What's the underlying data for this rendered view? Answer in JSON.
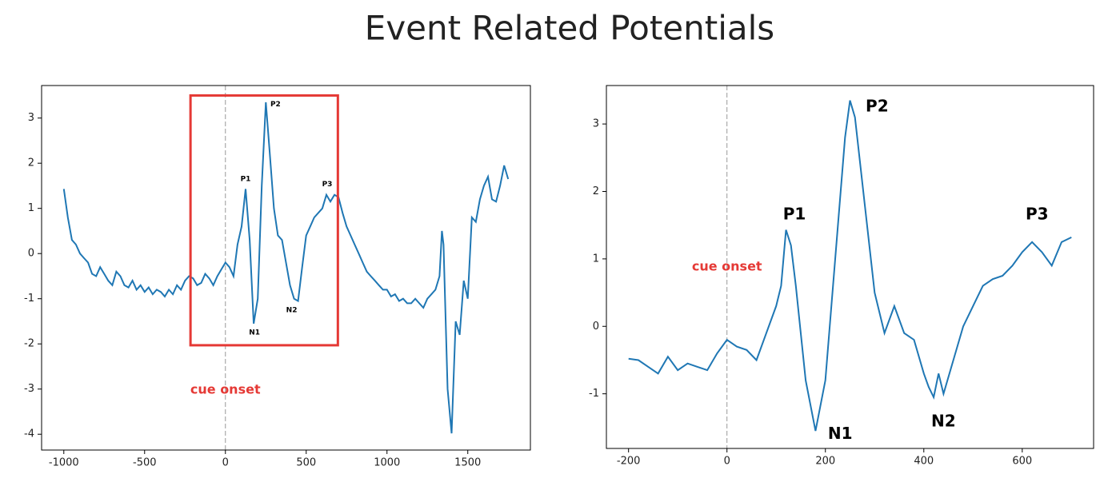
{
  "title": "Event Related Potentials",
  "chart_data": [
    {
      "type": "line",
      "color": "#1f77b4",
      "x": [
        -1000,
        -975,
        -950,
        -925,
        -900,
        -875,
        -850,
        -825,
        -800,
        -775,
        -750,
        -725,
        -700,
        -675,
        -650,
        -625,
        -600,
        -575,
        -550,
        -525,
        -500,
        -475,
        -450,
        -425,
        -400,
        -375,
        -350,
        -325,
        -300,
        -275,
        -250,
        -225,
        -200,
        -175,
        -150,
        -125,
        -100,
        -75,
        -50,
        -25,
        0,
        25,
        50,
        75,
        100,
        125,
        150,
        175,
        200,
        225,
        250,
        275,
        300,
        325,
        350,
        375,
        400,
        425,
        450,
        475,
        500,
        525,
        550,
        575,
        600,
        625,
        650,
        675,
        700,
        725,
        750,
        775,
        800,
        825,
        850,
        875,
        900,
        925,
        950,
        975,
        1000,
        1025,
        1050,
        1075,
        1100,
        1125,
        1150,
        1175,
        1200,
        1225,
        1250,
        1275,
        1300,
        1325,
        1340,
        1350,
        1375,
        1400,
        1425,
        1450,
        1475,
        1500,
        1525,
        1550,
        1575,
        1600,
        1625,
        1650,
        1675,
        1700,
        1725,
        1750
      ],
      "values": [
        1.43,
        0.8,
        0.3,
        0.2,
        0.0,
        -0.1,
        -0.2,
        -0.45,
        -0.5,
        -0.3,
        -0.45,
        -0.6,
        -0.7,
        -0.4,
        -0.5,
        -0.7,
        -0.75,
        -0.6,
        -0.8,
        -0.7,
        -0.85,
        -0.75,
        -0.9,
        -0.8,
        -0.85,
        -0.95,
        -0.8,
        -0.9,
        -0.7,
        -0.8,
        -0.6,
        -0.5,
        -0.55,
        -0.7,
        -0.65,
        -0.45,
        -0.55,
        -0.7,
        -0.5,
        -0.35,
        -0.2,
        -0.3,
        -0.5,
        0.2,
        0.6,
        1.43,
        0.3,
        -1.55,
        -1.0,
        1.5,
        3.35,
        2.2,
        1.0,
        0.4,
        0.3,
        -0.2,
        -0.7,
        -1.0,
        -1.05,
        -0.3,
        0.4,
        0.6,
        0.8,
        0.9,
        1.0,
        1.3,
        1.15,
        1.3,
        1.25,
        0.9,
        0.6,
        0.4,
        0.2,
        0.0,
        -0.2,
        -0.4,
        -0.5,
        -0.6,
        -0.7,
        -0.8,
        -0.8,
        -0.95,
        -0.9,
        -1.05,
        -1.0,
        -1.1,
        -1.1,
        -1.0,
        -1.1,
        -1.2,
        -1.0,
        -0.9,
        -0.8,
        -0.5,
        0.5,
        0.2,
        -3.0,
        -3.98,
        -1.5,
        -1.8,
        -0.6,
        -1.0,
        0.8,
        0.7,
        1.2,
        1.5,
        1.7,
        1.2,
        1.15,
        1.5,
        1.95,
        1.65
      ],
      "xlim": [
        -1137.5,
        1887.5
      ],
      "ylim": [
        -4.35,
        3.72
      ],
      "xticks": [
        -1000,
        -500,
        0,
        500,
        1000,
        1500
      ],
      "yticks": [
        -4,
        -3,
        -2,
        -1,
        0,
        1,
        2,
        3
      ],
      "vline": 0,
      "highlight": {
        "xlim": [
          -216,
          696
        ],
        "ylim": [
          -2.03,
          3.5
        ],
        "color": "#e53935"
      },
      "annotations": [
        {
          "text": "P1",
          "x": 125,
          "y": 1.65,
          "color": "#000000"
        },
        {
          "text": "P2",
          "x": 310,
          "y": 3.3,
          "color": "#000000"
        },
        {
          "text": "N1",
          "x": 180,
          "y": -1.75,
          "color": "#000000"
        },
        {
          "text": "N2",
          "x": 410,
          "y": -1.25,
          "color": "#000000"
        },
        {
          "text": "P3",
          "x": 630,
          "y": 1.53,
          "color": "#000000"
        },
        {
          "text": "cue onset",
          "x": 0,
          "y": -3.02,
          "color": "#e53935"
        }
      ]
    },
    {
      "type": "line",
      "color": "#1f77b4",
      "x": [
        -200,
        -180,
        -160,
        -140,
        -120,
        -100,
        -80,
        -60,
        -40,
        -20,
        0,
        20,
        40,
        60,
        80,
        100,
        110,
        120,
        130,
        140,
        160,
        180,
        200,
        220,
        240,
        250,
        260,
        280,
        300,
        320,
        340,
        360,
        380,
        400,
        410,
        420,
        430,
        440,
        460,
        480,
        500,
        520,
        540,
        560,
        580,
        600,
        620,
        640,
        660,
        680,
        700
      ],
      "values": [
        -0.48,
        -0.5,
        -0.6,
        -0.7,
        -0.45,
        -0.65,
        -0.55,
        -0.6,
        -0.65,
        -0.4,
        -0.2,
        -0.3,
        -0.35,
        -0.5,
        -0.1,
        0.3,
        0.6,
        1.43,
        1.2,
        0.6,
        -0.8,
        -1.55,
        -0.8,
        1.0,
        2.8,
        3.35,
        3.1,
        1.8,
        0.5,
        -0.1,
        0.3,
        -0.1,
        -0.2,
        -0.7,
        -0.9,
        -1.05,
        -0.7,
        -1.0,
        -0.5,
        0.0,
        0.3,
        0.6,
        0.7,
        0.75,
        0.9,
        1.1,
        1.25,
        1.1,
        0.9,
        1.25,
        1.32
      ],
      "xlim": [
        -245,
        745
      ],
      "ylim": [
        -1.81,
        3.57
      ],
      "xticks": [
        -200,
        0,
        200,
        400,
        600
      ],
      "yticks": [
        -1,
        0,
        1,
        2,
        3
      ],
      "vline": 0,
      "annotations": [
        {
          "text": "P1",
          "x": 137,
          "y": 1.65,
          "color": "#000000"
        },
        {
          "text": "P2",
          "x": 305,
          "y": 3.25,
          "color": "#000000"
        },
        {
          "text": "N1",
          "x": 230,
          "y": -1.6,
          "color": "#000000"
        },
        {
          "text": "N2",
          "x": 440,
          "y": -1.42,
          "color": "#000000"
        },
        {
          "text": "P3",
          "x": 630,
          "y": 1.65,
          "color": "#000000"
        },
        {
          "text": "cue onset",
          "x": 0,
          "y": 0.88,
          "color": "#e53935"
        }
      ]
    }
  ]
}
